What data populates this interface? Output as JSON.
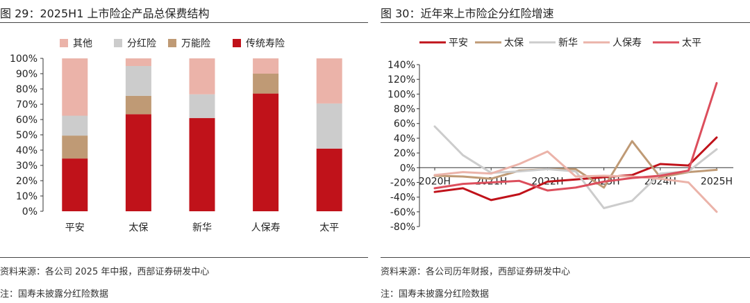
{
  "left": {
    "title": "图 29：2025H1 上市险企产品总保费结构",
    "source": "资料来源：各公司 2025 年中报，西部证券研发中心",
    "footnote": "注：国寿未披露分红险数据"
  },
  "right": {
    "title": "图 30：近年来上市险企分红险增速",
    "source": "资料来源：各公司历年财报，西部证券研发中心",
    "footnote": "注：国寿未披露分红险数据"
  },
  "chart_data": [
    {
      "type": "bar",
      "stacked": true,
      "title": "2025H1 上市险企产品总保费结构",
      "categories": [
        "平安",
        "太保",
        "新华",
        "人保寿",
        "太平"
      ],
      "series": [
        {
          "name": "传统寿险",
          "color": "#c0121a",
          "values": [
            34.5,
            63.5,
            61,
            77,
            41
          ]
        },
        {
          "name": "万能险",
          "color": "#bf9a75",
          "values": [
            15,
            12,
            0,
            13,
            0
          ]
        },
        {
          "name": "分红险",
          "color": "#cccccc",
          "values": [
            13,
            19.5,
            15.5,
            0,
            29.5
          ]
        },
        {
          "name": "其他",
          "color": "#ebb3a9",
          "values": [
            37.5,
            5,
            23.5,
            10,
            29.5
          ]
        }
      ],
      "legend_order": [
        "其他",
        "分红险",
        "万能险",
        "传统寿险"
      ],
      "ylim": [
        0,
        100
      ],
      "yticks": [
        "0%",
        "10%",
        "20%",
        "30%",
        "40%",
        "50%",
        "60%",
        "70%",
        "80%",
        "90%",
        "100%"
      ],
      "legend_position": "top"
    },
    {
      "type": "line",
      "title": "近年来上市险企分红险增速",
      "x_labels": [
        "2020H",
        "2021H",
        "2022H",
        "2023H",
        "2024H",
        "2025H"
      ],
      "series": [
        {
          "name": "平安",
          "color": "#c0121a",
          "points": [
            [
              0,
              -33
            ],
            [
              1,
              -28
            ],
            [
              2,
              -44
            ],
            [
              3,
              -36
            ],
            [
              4,
              -19
            ],
            [
              5,
              -16
            ],
            [
              6,
              -13
            ],
            [
              7,
              -10
            ],
            [
              8,
              5
            ],
            [
              9,
              3
            ],
            [
              10,
              41
            ]
          ]
        },
        {
          "name": "太保",
          "color": "#bf9a75",
          "points": [
            [
              0,
              -11
            ],
            [
              1,
              -12
            ],
            [
              2,
              -15
            ],
            [
              3,
              -4
            ],
            [
              4,
              -2
            ],
            [
              5,
              -2
            ],
            [
              6,
              -27
            ],
            [
              7,
              36
            ],
            [
              8,
              -13
            ],
            [
              9,
              -6
            ],
            [
              10,
              -3
            ]
          ]
        },
        {
          "name": "新华",
          "color": "#cccccc",
          "points": [
            [
              0,
              56
            ],
            [
              1,
              17
            ],
            [
              2,
              -7
            ],
            [
              3,
              -5
            ],
            [
              4,
              -2
            ],
            [
              5,
              -5
            ],
            [
              6,
              -55
            ],
            [
              7,
              -45
            ],
            [
              8,
              -8
            ],
            [
              9,
              -5
            ],
            [
              10,
              25
            ]
          ]
        },
        {
          "name": "人保寿",
          "color": "#ebb3a9",
          "points": [
            [
              0,
              -10
            ],
            [
              1,
              -6
            ],
            [
              2,
              -8
            ],
            [
              3,
              5
            ],
            [
              4,
              22
            ],
            [
              5,
              -12
            ],
            [
              6,
              -11
            ],
            [
              7,
              -12
            ],
            [
              8,
              -15
            ],
            [
              9,
              -20
            ],
            [
              10,
              -60
            ]
          ]
        },
        {
          "name": "太平",
          "color": "#dc4e5c",
          "points": [
            [
              0,
              -28
            ],
            [
              1,
              -22
            ],
            [
              2,
              -20
            ],
            [
              3,
              -18
            ],
            [
              4,
              -31
            ],
            [
              5,
              -27
            ],
            [
              6,
              -19
            ],
            [
              7,
              -14
            ],
            [
              8,
              -11
            ],
            [
              9,
              -4
            ],
            [
              10,
              115
            ]
          ]
        }
      ],
      "ylim": [
        -80,
        140
      ],
      "yticks": [
        "-80%",
        "-60%",
        "-40%",
        "-20%",
        "0%",
        "20%",
        "40%",
        "60%",
        "80%",
        "100%",
        "120%",
        "140%"
      ],
      "legend_position": "top"
    }
  ]
}
